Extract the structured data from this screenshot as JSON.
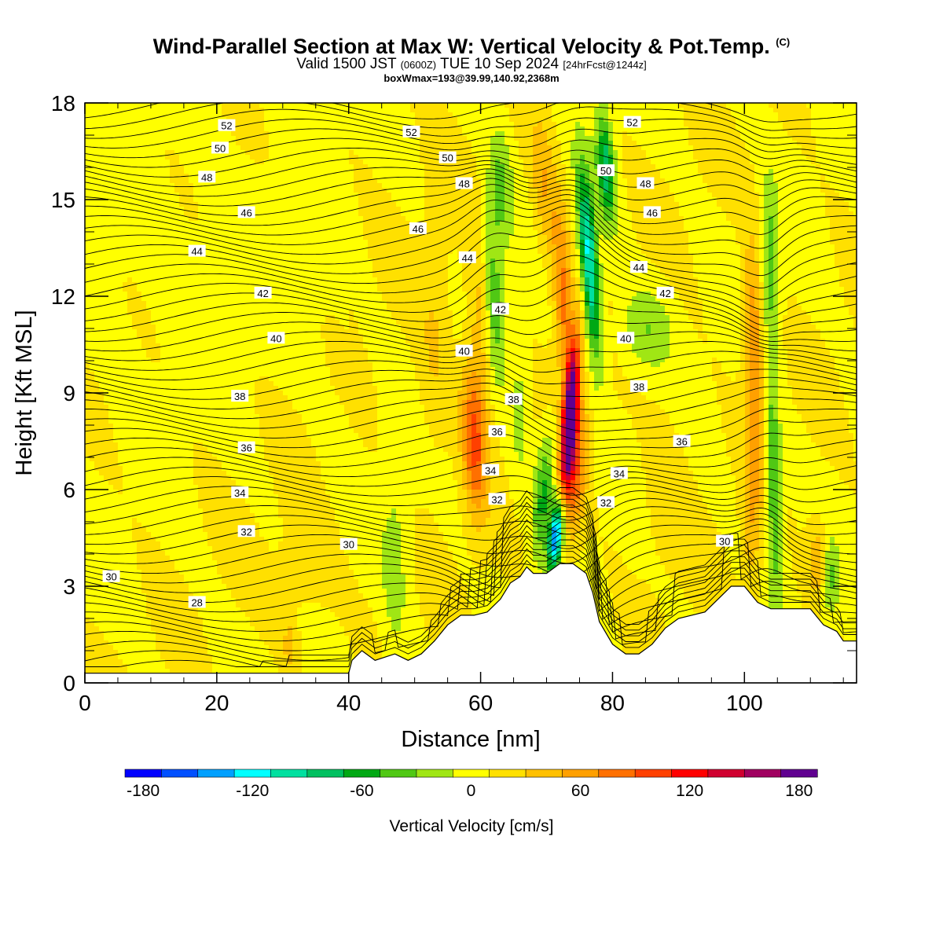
{
  "header": {
    "title": "Wind-Parallel Section at Max W: Vertical Velocity & Pot.Temp.",
    "copyright_mark": "(C)",
    "valid_prefix": "Valid 1500 JST",
    "valid_utc": "(0600Z)",
    "valid_date": "TUE 10 Sep 2024",
    "forecast_note": "[24hrFcst@1244z]",
    "box_info": "boxWmax=193@39.99,140.92,2368m"
  },
  "colorbar": {
    "label": "Vertical Velocity [cm/s]",
    "tick_labels": [
      "-180",
      "-120",
      "-60",
      "0",
      "60",
      "120",
      "180"
    ],
    "tick_values": [
      -180,
      -120,
      -60,
      0,
      60,
      120,
      180
    ],
    "range": [
      -190,
      190
    ],
    "colors": [
      "#0000ff",
      "#0050ff",
      "#00a0ff",
      "#00ffff",
      "#00e0a0",
      "#00c060",
      "#00a814",
      "#50c814",
      "#a0e614",
      "#ffff00",
      "#ffe000",
      "#ffc000",
      "#ffa000",
      "#ff7000",
      "#ff4000",
      "#ff0000",
      "#d00030",
      "#a00060",
      "#600090"
    ]
  },
  "chart_data": {
    "type": "heatmap",
    "title": "Wind-Parallel Section at Max W: Vertical Velocity & Pot.Temp.",
    "xlabel": "Distance [nm]",
    "ylabel": "Height [Kft MSL]",
    "xlim": [
      0,
      117
    ],
    "ylim": [
      0,
      18
    ],
    "x_ticks": [
      0,
      20,
      40,
      60,
      80,
      100
    ],
    "x_tick_labels": [
      "0",
      "20",
      "40",
      "60",
      "80",
      "100"
    ],
    "y_ticks": [
      0,
      3,
      6,
      9,
      12,
      15,
      18
    ],
    "y_tick_labels": [
      "0",
      "3",
      "6",
      "9",
      "12",
      "15",
      "18"
    ],
    "field": "Vertical Velocity [cm/s]",
    "color_level_step": 20,
    "max_w": 193,
    "terrain_profile": {
      "x": [
        0,
        40,
        40.5,
        42,
        44,
        47,
        49,
        51,
        53,
        55,
        57,
        59,
        61,
        63,
        64.5,
        66,
        67,
        68,
        70,
        72,
        74,
        76,
        77,
        78,
        80,
        82,
        84,
        86,
        88,
        90,
        92,
        94,
        96,
        98,
        100,
        102,
        104,
        106,
        108,
        110,
        112,
        114,
        115,
        117
      ],
      "height_kft": [
        0.3,
        0.3,
        0.7,
        1.0,
        0.7,
        0.9,
        0.7,
        0.9,
        1.3,
        1.8,
        2.1,
        2.1,
        2.2,
        2.6,
        3.1,
        3.3,
        3.6,
        3.4,
        3.4,
        3.7,
        3.7,
        3.4,
        2.8,
        1.9,
        1.2,
        0.9,
        0.9,
        1.2,
        1.7,
        2.0,
        2.1,
        2.2,
        2.6,
        3.0,
        3.0,
        2.5,
        2.3,
        2.3,
        2.3,
        2.3,
        1.8,
        1.6,
        1.3,
        1.3
      ]
    },
    "vertical_velocity_features": [
      {
        "x": 73.5,
        "y": 8.2,
        "w": 193,
        "sx": 1.1,
        "sy": 2.4,
        "tilt": 0.35
      },
      {
        "x": 74.5,
        "y": 6.6,
        "w": 70,
        "sx": 1.6,
        "sy": 2.2,
        "tilt": 0.3
      },
      {
        "x": 71.5,
        "y": 4.6,
        "w": -170,
        "sx": 1.0,
        "sy": 1.1,
        "tilt": 0.5
      },
      {
        "x": 69.5,
        "y": 5.8,
        "w": -60,
        "sx": 1.5,
        "sy": 2.0,
        "tilt": 0.4
      },
      {
        "x": 76.5,
        "y": 13.0,
        "w": -130,
        "sx": 1.3,
        "sy": 2.8,
        "tilt": -0.35
      },
      {
        "x": 79.0,
        "y": 16.0,
        "w": -90,
        "sx": 1.3,
        "sy": 1.7,
        "tilt": -0.3
      },
      {
        "x": 72.5,
        "y": 12.0,
        "w": 70,
        "sx": 1.4,
        "sy": 3.0,
        "tilt": -0.25
      },
      {
        "x": 69.5,
        "y": 15.5,
        "w": 40,
        "sx": 1.6,
        "sy": 2.2,
        "tilt": -0.25
      },
      {
        "x": 59.0,
        "y": 7.5,
        "w": 85,
        "sx": 1.8,
        "sy": 2.3,
        "tilt": -0.2
      },
      {
        "x": 60.0,
        "y": 11.0,
        "w": 35,
        "sx": 1.8,
        "sy": 3.0,
        "tilt": -0.2
      },
      {
        "x": 62.0,
        "y": 11.8,
        "w": -55,
        "sx": 1.5,
        "sy": 2.4,
        "tilt": -0.2
      },
      {
        "x": 63.0,
        "y": 15.5,
        "w": -40,
        "sx": 1.8,
        "sy": 2.0,
        "tilt": -0.1
      },
      {
        "x": 66.0,
        "y": 8.5,
        "w": -25,
        "sx": 1.5,
        "sy": 2.5,
        "tilt": 0
      },
      {
        "x": 85.0,
        "y": 11.0,
        "w": -35,
        "sx": 4.0,
        "sy": 1.3,
        "tilt": 0
      },
      {
        "x": 101.5,
        "y": 10.0,
        "w": 70,
        "sx": 1.4,
        "sy": 3.5,
        "tilt": -0.12
      },
      {
        "x": 101.0,
        "y": 5.0,
        "w": 35,
        "sx": 1.3,
        "sy": 2.5,
        "tilt": 0
      },
      {
        "x": 104.5,
        "y": 6.0,
        "w": -65,
        "sx": 1.2,
        "sy": 3.5,
        "tilt": -0.15
      },
      {
        "x": 104.0,
        "y": 13.0,
        "w": -50,
        "sx": 1.3,
        "sy": 2.5,
        "tilt": -0.1
      },
      {
        "x": 111.0,
        "y": 3.8,
        "w": 40,
        "sx": 1.5,
        "sy": 1.3,
        "tilt": 0
      },
      {
        "x": 113.0,
        "y": 3.2,
        "w": -40,
        "sx": 1.2,
        "sy": 1.2,
        "tilt": 0
      },
      {
        "x": 33.5,
        "y": 3.5,
        "w": 15,
        "sx": 5.0,
        "sy": 2.0,
        "tilt": 0
      },
      {
        "x": 31.0,
        "y": 1.2,
        "w": 30,
        "sx": 1.0,
        "sy": 0.9,
        "tilt": 0
      },
      {
        "x": 47.0,
        "y": 3.5,
        "w": -25,
        "sx": 2.0,
        "sy": 3.5,
        "tilt": 0
      },
      {
        "x": 53.0,
        "y": 10.5,
        "w": 22,
        "sx": 2.5,
        "sy": 3.5,
        "tilt": 0
      },
      {
        "x": 88.0,
        "y": 6.0,
        "w": 15,
        "sx": 3.5,
        "sy": 2.5,
        "tilt": 0
      }
    ],
    "potential_temperature_labels": [
      {
        "label": "52",
        "x": 21.5,
        "y": 17.3
      },
      {
        "label": "50",
        "x": 20.5,
        "y": 16.6
      },
      {
        "label": "48",
        "x": 18.5,
        "y": 15.7
      },
      {
        "label": "46",
        "x": 24.5,
        "y": 14.6
      },
      {
        "label": "44",
        "x": 17.0,
        "y": 13.4
      },
      {
        "label": "42",
        "x": 27.0,
        "y": 12.1
      },
      {
        "label": "40",
        "x": 29.0,
        "y": 10.7
      },
      {
        "label": "38",
        "x": 23.5,
        "y": 8.9
      },
      {
        "label": "36",
        "x": 24.5,
        "y": 7.3
      },
      {
        "label": "34",
        "x": 23.5,
        "y": 5.9
      },
      {
        "label": "32",
        "x": 24.5,
        "y": 4.7
      },
      {
        "label": "30",
        "x": 4.0,
        "y": 3.3
      },
      {
        "label": "28",
        "x": 17.0,
        "y": 2.5
      },
      {
        "label": "30",
        "x": 40.0,
        "y": 4.3
      },
      {
        "label": "52",
        "x": 49.5,
        "y": 17.1
      },
      {
        "label": "50",
        "x": 55.0,
        "y": 16.3
      },
      {
        "label": "48",
        "x": 57.5,
        "y": 15.5
      },
      {
        "label": "46",
        "x": 50.5,
        "y": 14.1
      },
      {
        "label": "44",
        "x": 58.0,
        "y": 13.2
      },
      {
        "label": "42",
        "x": 63.0,
        "y": 11.6
      },
      {
        "label": "40",
        "x": 57.5,
        "y": 10.3
      },
      {
        "label": "38",
        "x": 65.0,
        "y": 8.8
      },
      {
        "label": "36",
        "x": 62.5,
        "y": 7.8
      },
      {
        "label": "34",
        "x": 61.5,
        "y": 6.6
      },
      {
        "label": "32",
        "x": 62.5,
        "y": 5.7
      },
      {
        "label": "52",
        "x": 83.0,
        "y": 17.4
      },
      {
        "label": "50",
        "x": 79.0,
        "y": 15.9
      },
      {
        "label": "48",
        "x": 85.0,
        "y": 15.5
      },
      {
        "label": "46",
        "x": 86.0,
        "y": 14.6
      },
      {
        "label": "44",
        "x": 84.0,
        "y": 12.9
      },
      {
        "label": "42",
        "x": 88.0,
        "y": 12.1
      },
      {
        "label": "40",
        "x": 82.0,
        "y": 10.7
      },
      {
        "label": "38",
        "x": 84.0,
        "y": 9.2
      },
      {
        "label": "36",
        "x": 90.5,
        "y": 7.5
      },
      {
        "label": "34",
        "x": 81.0,
        "y": 6.5
      },
      {
        "label": "32",
        "x": 79.0,
        "y": 5.6
      },
      {
        "label": "30",
        "x": 97.0,
        "y": 4.4
      }
    ]
  }
}
